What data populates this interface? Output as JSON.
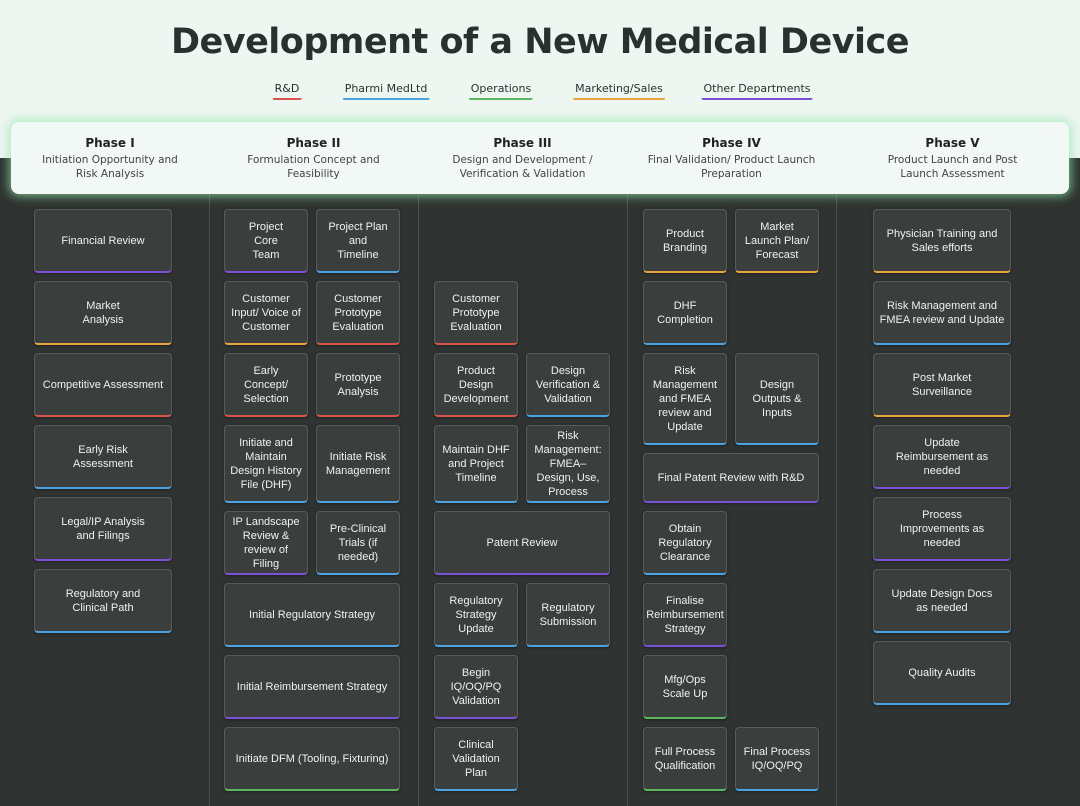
{
  "title": "Development of a New Medical Device",
  "legend": [
    {
      "id": "rd",
      "label": "R&D",
      "color": "#d9534a"
    },
    {
      "id": "pharmi",
      "label": "Pharmi MedLtd",
      "color": "#4aa3e0"
    },
    {
      "id": "ops",
      "label": "Operations",
      "color": "#5cb85c"
    },
    {
      "id": "mkt",
      "label": "Marketing/Sales",
      "color": "#e8a43c"
    },
    {
      "id": "other",
      "label": "Other Departments",
      "color": "#7b4fd6"
    }
  ],
  "phases": [
    {
      "name": "Phase I",
      "subtitle": "Initiation Opportunity and Risk Analysis"
    },
    {
      "name": "Phase II",
      "subtitle": "Formulation Concept and Feasibility"
    },
    {
      "name": "Phase III",
      "subtitle": "Design and Development / Verification & Validation"
    },
    {
      "name": "Phase IV",
      "subtitle": "Final Validation/ Product Launch Preparation"
    },
    {
      "name": "Phase V",
      "subtitle": "Product Launch and Post Launch Assessment"
    }
  ],
  "cards": [
    {
      "phase": "Phase I",
      "label": "Financial Review",
      "dept": "other"
    },
    {
      "phase": "Phase I",
      "label": "Market Analysis",
      "dept": "mkt"
    },
    {
      "phase": "Phase I",
      "label": "Competitive Assessment",
      "dept": "rd"
    },
    {
      "phase": "Phase I",
      "label": "Early Risk Assessment",
      "dept": "pharmi"
    },
    {
      "phase": "Phase I",
      "label": "Legal/IP Analysis and Filings",
      "dept": "other"
    },
    {
      "phase": "Phase I",
      "label": "Regulatory and Clinical Path",
      "dept": "pharmi"
    },
    {
      "phase": "Phase II",
      "label": "Project Core Team",
      "dept": "other"
    },
    {
      "phase": "Phase II",
      "label": "Project Plan and Timeline",
      "dept": "pharmi"
    },
    {
      "phase": "Phase II",
      "label": "Customer Input/ Voice of Customer",
      "dept": "mkt"
    },
    {
      "phase": "Phase II",
      "label": "Customer Prototype Evaluation",
      "dept": "rd"
    },
    {
      "phase": "Phase II",
      "label": "Early Concept/ Selection",
      "dept": "rd"
    },
    {
      "phase": "Phase II",
      "label": "Prototype Analysis",
      "dept": "rd"
    },
    {
      "phase": "Phase II",
      "label": "Initiate and Maintain Design History File (DHF)",
      "dept": "pharmi"
    },
    {
      "phase": "Phase II",
      "label": "Initiate Risk Management",
      "dept": "pharmi"
    },
    {
      "phase": "Phase II",
      "label": "IP Landscape Review & review of Filing",
      "dept": "other"
    },
    {
      "phase": "Phase II",
      "label": "Pre-Clinical Trials (if needed)",
      "dept": "pharmi"
    },
    {
      "phase": "Phase II",
      "label": "Initial Regulatory Strategy",
      "dept": "pharmi"
    },
    {
      "phase": "Phase II",
      "label": "Initial Reimbursement Strategy",
      "dept": "other"
    },
    {
      "phase": "Phase II",
      "label": "Initiate DFM (Tooling, Fixturing)",
      "dept": "ops"
    },
    {
      "phase": "Phase III",
      "label": "Customer Prototype Evaluation",
      "dept": "rd"
    },
    {
      "phase": "Phase III",
      "label": "Product Design Development",
      "dept": "rd"
    },
    {
      "phase": "Phase III",
      "label": "Design Verification & Validation",
      "dept": "pharmi"
    },
    {
      "phase": "Phase III",
      "label": "Maintain DHF and Project Timeline",
      "dept": "pharmi"
    },
    {
      "phase": "Phase III",
      "label": "Risk Management: FMEA–Design, Use, Process",
      "dept": "pharmi"
    },
    {
      "phase": "Phase III",
      "label": "Patent Review",
      "dept": "other"
    },
    {
      "phase": "Phase III",
      "label": "Regulatory Strategy Update",
      "dept": "pharmi"
    },
    {
      "phase": "Phase III",
      "label": "Regulatory Submission",
      "dept": "pharmi"
    },
    {
      "phase": "Phase III",
      "label": "Begin IQ/OQ/PQ Validation",
      "dept": "other"
    },
    {
      "phase": "Phase III",
      "label": "Clinical Validation Plan",
      "dept": "pharmi"
    },
    {
      "phase": "Phase IV",
      "label": "Product Branding",
      "dept": "mkt"
    },
    {
      "phase": "Phase IV",
      "label": "Market Launch Plan/ Forecast",
      "dept": "mkt"
    },
    {
      "phase": "Phase IV",
      "label": "DHF Completion",
      "dept": "pharmi"
    },
    {
      "phase": "Phase IV",
      "label": "Risk Management and FMEA review and Update",
      "dept": "pharmi"
    },
    {
      "phase": "Phase IV",
      "label": "Design Outputs & Inputs",
      "dept": "pharmi"
    },
    {
      "phase": "Phase IV",
      "label": "Final Patent Review with R&D",
      "dept": "other"
    },
    {
      "phase": "Phase IV",
      "label": "Obtain Regulatory Clearance",
      "dept": "pharmi"
    },
    {
      "phase": "Phase IV",
      "label": "Finalise Reimbursement Strategy",
      "dept": "other"
    },
    {
      "phase": "Phase IV",
      "label": "Mfg/Ops Scale Up",
      "dept": "ops"
    },
    {
      "phase": "Phase IV",
      "label": "Full Process Qualification",
      "dept": "ops"
    },
    {
      "phase": "Phase IV",
      "label": "Final Process IQ/OQ/PQ",
      "dept": "pharmi"
    },
    {
      "phase": "Phase V",
      "label": "Physician Training and Sales efforts",
      "dept": "mkt"
    },
    {
      "phase": "Phase V",
      "label": "Risk Management and FMEA review and Update",
      "dept": "pharmi"
    },
    {
      "phase": "Phase V",
      "label": "Post Market Surveillance",
      "dept": "mkt"
    },
    {
      "phase": "Phase V",
      "label": "Update Reimbursement as needed",
      "dept": "other"
    },
    {
      "phase": "Phase V",
      "label": "Process Improvements as needed",
      "dept": "other"
    },
    {
      "phase": "Phase V",
      "label": "Update Design Docs as needed",
      "dept": "pharmi"
    },
    {
      "phase": "Phase V",
      "label": "Quality Audits",
      "dept": "pharmi"
    }
  ]
}
